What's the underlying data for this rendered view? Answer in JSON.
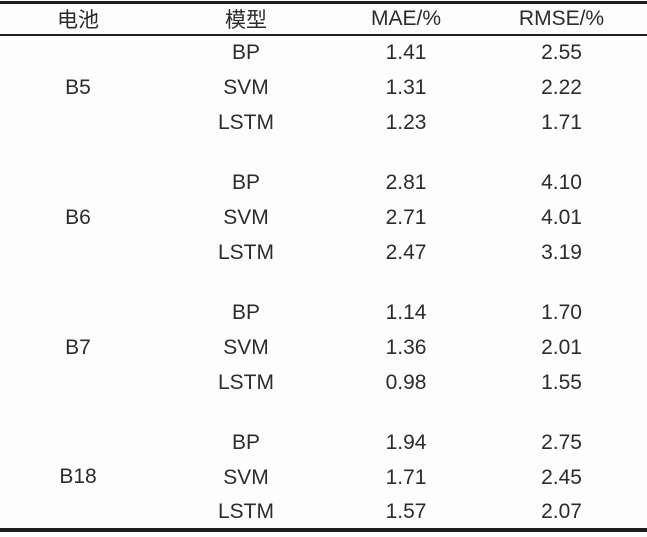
{
  "table": {
    "headers": [
      "电池",
      "模型",
      "MAE/%",
      "RMSE/%"
    ],
    "groups": [
      {
        "battery": "B5",
        "rows": [
          {
            "model": "BP",
            "mae": "1.41",
            "rmse": "2.55"
          },
          {
            "model": "SVM",
            "mae": "1.31",
            "rmse": "2.22"
          },
          {
            "model": "LSTM",
            "mae": "1.23",
            "rmse": "1.71"
          }
        ]
      },
      {
        "battery": "B6",
        "rows": [
          {
            "model": "BP",
            "mae": "2.81",
            "rmse": "4.10"
          },
          {
            "model": "SVM",
            "mae": "2.71",
            "rmse": "4.01"
          },
          {
            "model": "LSTM",
            "mae": "2.47",
            "rmse": "3.19"
          }
        ]
      },
      {
        "battery": "B7",
        "rows": [
          {
            "model": "BP",
            "mae": "1.14",
            "rmse": "1.70"
          },
          {
            "model": "SVM",
            "mae": "1.36",
            "rmse": "2.01"
          },
          {
            "model": "LSTM",
            "mae": "0.98",
            "rmse": "1.55"
          }
        ]
      },
      {
        "battery": "B18",
        "rows": [
          {
            "model": "BP",
            "mae": "1.94",
            "rmse": "2.75"
          },
          {
            "model": "SVM",
            "mae": "1.71",
            "rmse": "2.45"
          },
          {
            "model": "LSTM",
            "mae": "1.57",
            "rmse": "2.07"
          }
        ]
      }
    ]
  },
  "chart_data": {
    "type": "table",
    "columns": [
      "电池",
      "模型",
      "MAE/%",
      "RMSE/%"
    ],
    "rows": [
      [
        "B5",
        "BP",
        1.41,
        2.55
      ],
      [
        "B5",
        "SVM",
        1.31,
        2.22
      ],
      [
        "B5",
        "LSTM",
        1.23,
        1.71
      ],
      [
        "B6",
        "BP",
        2.81,
        4.1
      ],
      [
        "B6",
        "SVM",
        2.71,
        4.01
      ],
      [
        "B6",
        "LSTM",
        2.47,
        3.19
      ],
      [
        "B7",
        "BP",
        1.14,
        1.7
      ],
      [
        "B7",
        "SVM",
        1.36,
        2.01
      ],
      [
        "B7",
        "LSTM",
        0.98,
        1.55
      ],
      [
        "B18",
        "BP",
        1.94,
        2.75
      ],
      [
        "B18",
        "SVM",
        1.71,
        2.45
      ],
      [
        "B18",
        "LSTM",
        1.57,
        2.07
      ]
    ]
  },
  "colors": {
    "text": "#2c2c2c",
    "rule_line": "#1e1e1e",
    "background": "#fdfdfd"
  }
}
